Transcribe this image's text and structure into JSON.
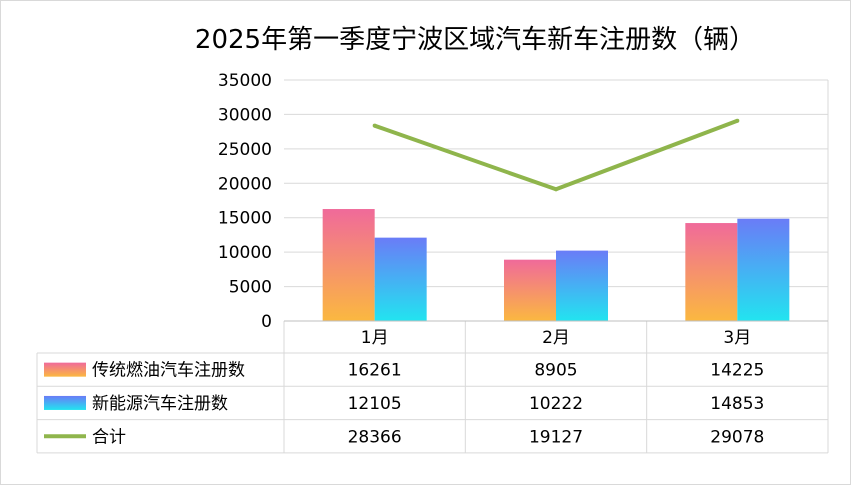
{
  "chart_data": {
    "type": "bar",
    "title": "2025年第一季度宁波区域汽车新车注册数（辆）",
    "categories": [
      "1月",
      "2月",
      "3月"
    ],
    "series": [
      {
        "name": "传统燃油汽车注册数",
        "type": "bar",
        "values": [
          16261,
          8905,
          14225
        ],
        "color_top": "#f06a9a",
        "color_bottom": "#fbb840"
      },
      {
        "name": "新能源汽车注册数",
        "type": "bar",
        "values": [
          12105,
          10222,
          14853
        ],
        "color_top": "#6a7cf7",
        "color_bottom": "#22e4f0"
      },
      {
        "name": "合计",
        "type": "line",
        "values": [
          28366,
          19127,
          29078
        ],
        "color": "#8fb54c"
      }
    ],
    "y_ticks": [
      "0",
      "5000",
      "10000",
      "15000",
      "20000",
      "25000",
      "30000",
      "35000"
    ],
    "ylim": [
      0,
      35000
    ],
    "grid": true,
    "legend": "data-table"
  }
}
